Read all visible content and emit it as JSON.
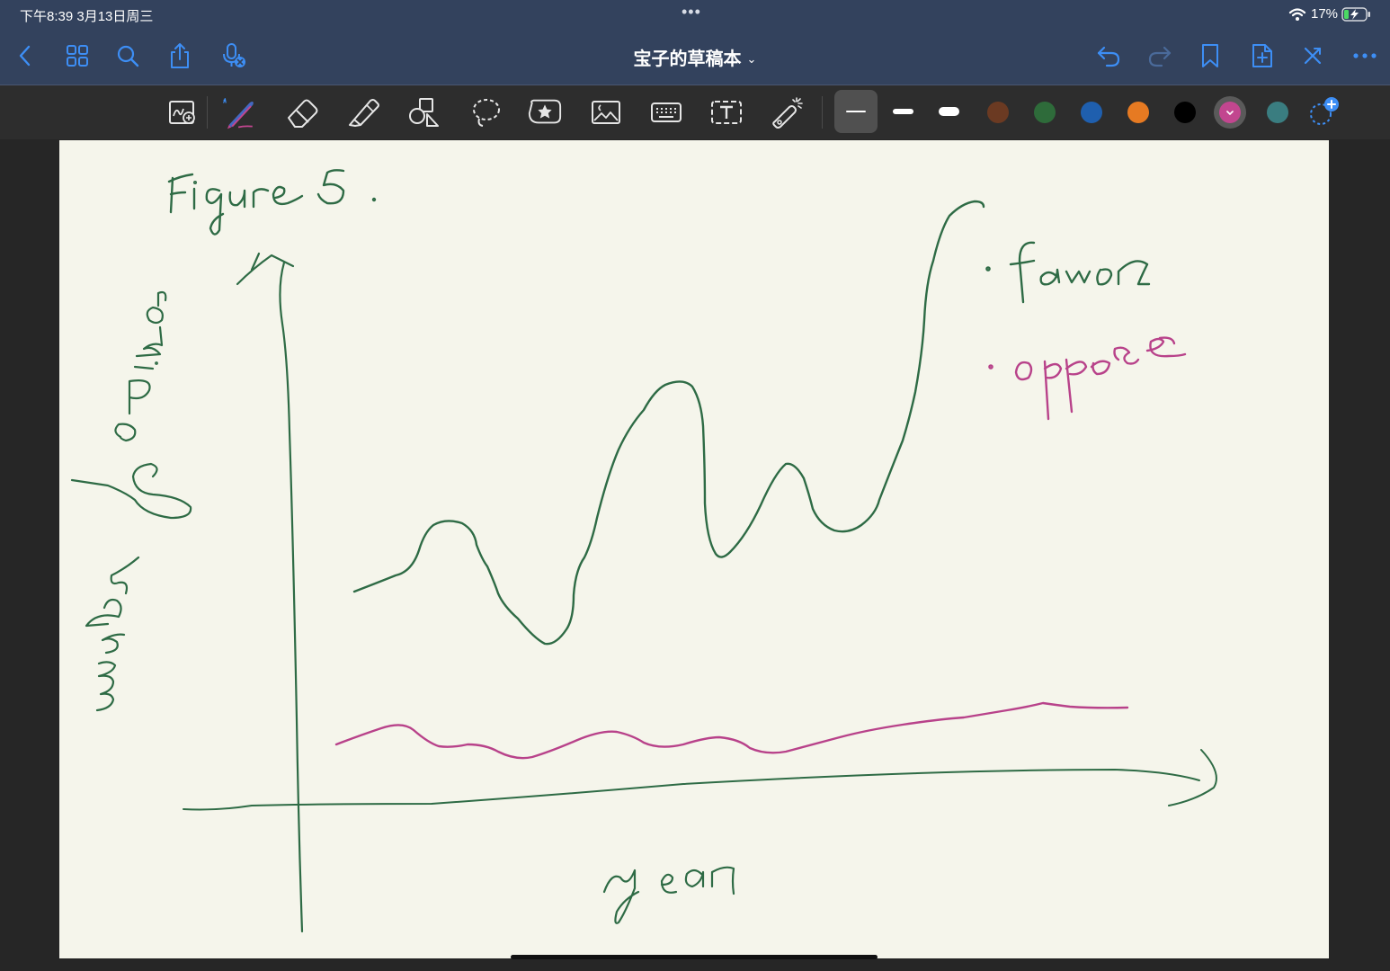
{
  "status_bar": {
    "time": "下午8:39   3月13日周三",
    "multitask_dots": "•••",
    "battery_percent": "17%",
    "charging": true
  },
  "nav_bar": {
    "title": "宝子的草稿本",
    "title_chevron": "⌄",
    "left_icons": [
      "back-icon",
      "grid-icon",
      "search-icon",
      "share-icon",
      "microphone-off-icon"
    ],
    "right_icons": [
      "undo-icon",
      "redo-icon",
      "bookmark-icon",
      "add-page-icon",
      "close-icon",
      "more-icon"
    ]
  },
  "toolbar": {
    "tools": [
      "zoom-window-icon",
      "pen-icon",
      "eraser-icon",
      "highlighter-icon",
      "shapes-icon",
      "lasso-icon",
      "sticker-icon",
      "image-icon",
      "keyboard-icon",
      "text-box-icon",
      "laser-pointer-icon"
    ],
    "selected_tool": "pen-icon",
    "stroke_widths": [
      "thin",
      "medium",
      "thick"
    ],
    "selected_stroke": "thin",
    "colors": [
      "#6b3a22",
      "#2e6b3a",
      "#1f5fae",
      "#e67a22",
      "#000000",
      "#c2468f",
      "#3a7d80"
    ],
    "selected_color": "#c2468f",
    "add_color_icon": "add-color-icon"
  },
  "canvas": {
    "background": "#f5f5eb",
    "ink_colors": {
      "green": "#2e6b45",
      "magenta": "#b8428a"
    },
    "handwriting": {
      "title": "Figure 5.",
      "y_axis_label": "number of opinion",
      "x_axis_label": "year",
      "legend_favor": "• favor",
      "legend_oppose": "• oppose"
    },
    "sketch": {
      "favor_line_shape": "rises with several peaks and dips, ending sharply high",
      "oppose_line_shape": "low, gently wavy, slowly rising"
    }
  }
}
